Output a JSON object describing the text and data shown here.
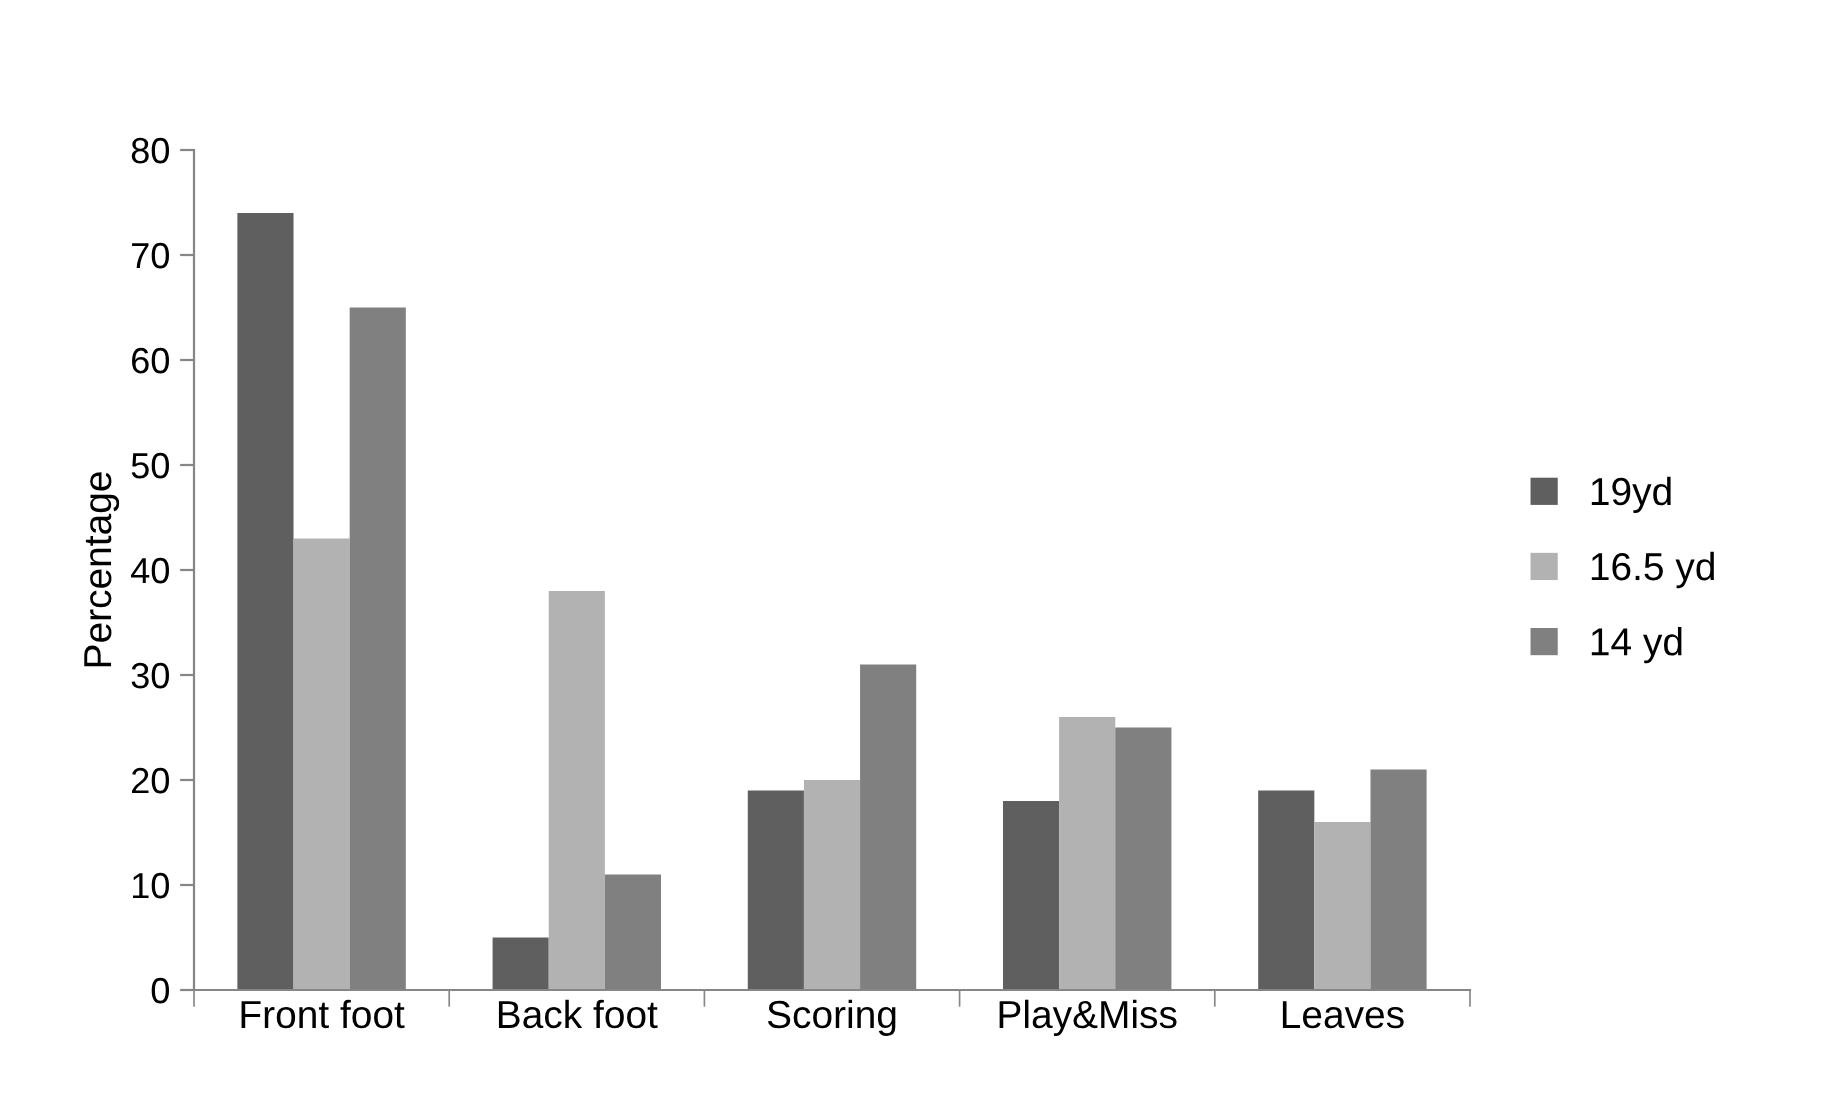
{
  "chart_data": {
    "type": "bar",
    "ylabel": "Percentage",
    "categories": [
      "Front foot",
      "Back foot",
      "Scoring",
      "Play&Miss",
      "Leaves"
    ],
    "series": [
      {
        "name": "19yd",
        "color": "#5f5f5f",
        "values": [
          74,
          5,
          19,
          18,
          19
        ]
      },
      {
        "name": "16.5 yd",
        "color": "#b2b2b2",
        "values": [
          43,
          38,
          20,
          26,
          16
        ]
      },
      {
        "name": "14 yd",
        "color": "#808080",
        "values": [
          65,
          11,
          31,
          25,
          21
        ]
      }
    ],
    "ylim": [
      0,
      80
    ],
    "yticks": [
      0,
      10,
      20,
      30,
      40,
      50,
      60,
      70,
      80
    ],
    "grid": false,
    "legend": "right"
  }
}
